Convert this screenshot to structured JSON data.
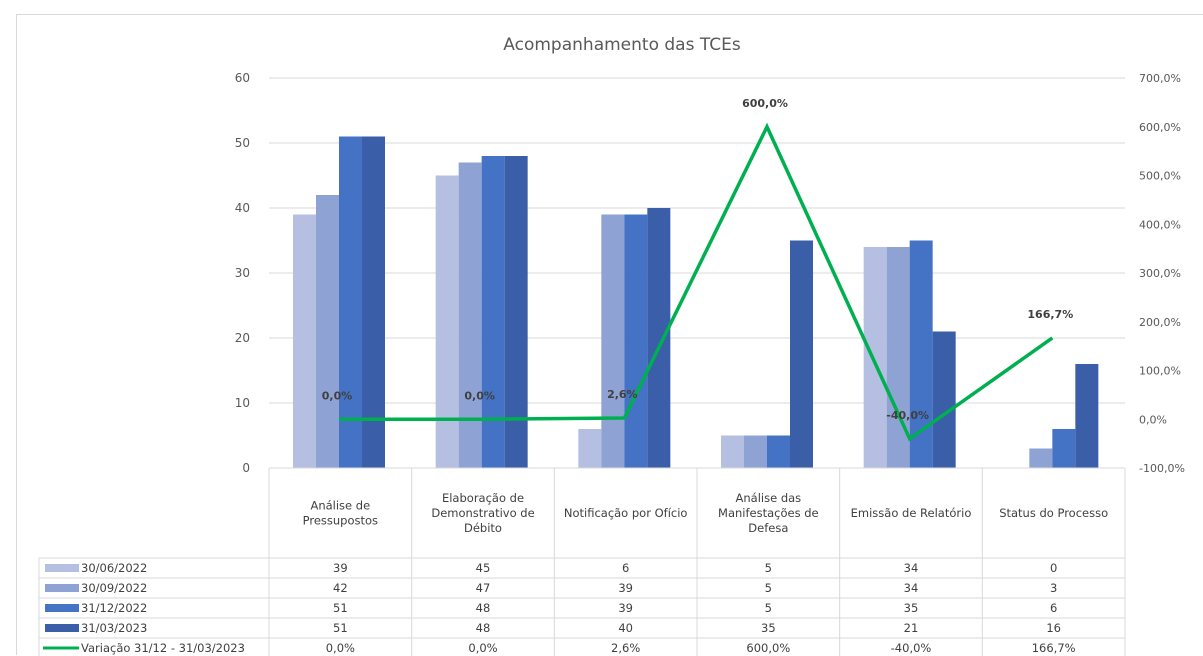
{
  "chart_data": {
    "type": "bar",
    "title": "Acompanhamento das TCEs",
    "categories": [
      [
        "Análise de",
        "Pressupostos"
      ],
      [
        "Elaboração de",
        "Demonstrativo de",
        "Débito"
      ],
      [
        "Notificação por Ofício"
      ],
      [
        "Análise das",
        "Manifestações de",
        "Defesa"
      ],
      [
        "Emissão de Relatório"
      ],
      [
        "Status do Processo"
      ]
    ],
    "series": [
      {
        "name": "30/06/2022",
        "type": "bar",
        "color": "#b4bfe2",
        "values": [
          39,
          45,
          6,
          5,
          34,
          0
        ],
        "labels": [
          "39",
          "45",
          "6",
          "5",
          "34",
          "0"
        ]
      },
      {
        "name": "30/09/2022",
        "type": "bar",
        "color": "#8fa2d4",
        "values": [
          42,
          47,
          39,
          5,
          34,
          3
        ],
        "labels": [
          "42",
          "47",
          "39",
          "5",
          "34",
          "3"
        ]
      },
      {
        "name": "31/12/2022",
        "type": "bar",
        "color": "#4472c4",
        "values": [
          51,
          48,
          39,
          5,
          35,
          6
        ],
        "labels": [
          "51",
          "48",
          "39",
          "5",
          "35",
          "6"
        ]
      },
      {
        "name": "31/03/2023",
        "type": "bar",
        "color": "#3a5ea8",
        "values": [
          51,
          48,
          40,
          35,
          21,
          16
        ],
        "labels": [
          "51",
          "48",
          "40",
          "35",
          "21",
          "16"
        ]
      },
      {
        "name": "Variação 31/12 - 31/03/2023",
        "type": "line",
        "axis": "secondary",
        "color": "#00b050",
        "values": [
          0.0,
          0.0,
          2.6,
          600.0,
          -40.0,
          166.7
        ],
        "labels": [
          "0,0%",
          "0,0%",
          "2,6%",
          "600,0%",
          "-40,0%",
          "166,7%"
        ]
      }
    ],
    "y_axis": {
      "min": 0,
      "max": 60,
      "ticks": [
        "0",
        "10",
        "20",
        "30",
        "40",
        "50",
        "60"
      ]
    },
    "y2_axis": {
      "min": -100,
      "max": 700,
      "ticks": [
        "-100,0%",
        "0,0%",
        "100,0%",
        "200,0%",
        "300,0%",
        "400,0%",
        "500,0%",
        "600,0%",
        "700,0%"
      ]
    },
    "grid": true,
    "legend": "data-table-bottom"
  }
}
